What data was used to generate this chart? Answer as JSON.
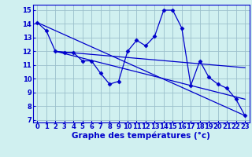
{
  "bg_color": "#d0f0f0",
  "grid_color": "#9bbfcc",
  "line_color": "#0000cc",
  "marker": "D",
  "markersize": 2.5,
  "linewidth": 0.9,
  "xlabel": "Graphe des températures (°c)",
  "xlabel_fontsize": 7.5,
  "tick_fontsize": 6.0,
  "xlim": [
    -0.5,
    23.5
  ],
  "ylim": [
    6.8,
    15.4
  ],
  "yticks": [
    7,
    8,
    9,
    10,
    11,
    12,
    13,
    14,
    15
  ],
  "xticks": [
    0,
    1,
    2,
    3,
    4,
    5,
    6,
    7,
    8,
    9,
    10,
    11,
    12,
    13,
    14,
    15,
    16,
    17,
    18,
    19,
    20,
    21,
    22,
    23
  ],
  "series": [
    {
      "x": [
        0,
        1,
        2,
        3,
        4,
        5,
        6,
        7,
        8,
        9,
        10,
        11,
        12,
        13,
        14,
        15,
        16,
        17,
        18,
        19,
        20,
        21,
        22,
        23
      ],
      "y": [
        14.1,
        13.5,
        12.0,
        11.9,
        11.9,
        11.3,
        11.3,
        10.4,
        9.6,
        9.8,
        12.0,
        12.8,
        12.4,
        13.1,
        15.0,
        15.0,
        13.7,
        9.5,
        11.3,
        10.1,
        9.6,
        9.3,
        8.5,
        7.3
      ],
      "has_markers": true
    },
    {
      "x": [
        0,
        23
      ],
      "y": [
        14.1,
        7.3
      ],
      "has_markers": false
    },
    {
      "x": [
        2,
        23
      ],
      "y": [
        12.0,
        8.5
      ],
      "has_markers": false
    },
    {
      "x": [
        2,
        23
      ],
      "y": [
        12.0,
        10.8
      ],
      "has_markers": false
    }
  ]
}
